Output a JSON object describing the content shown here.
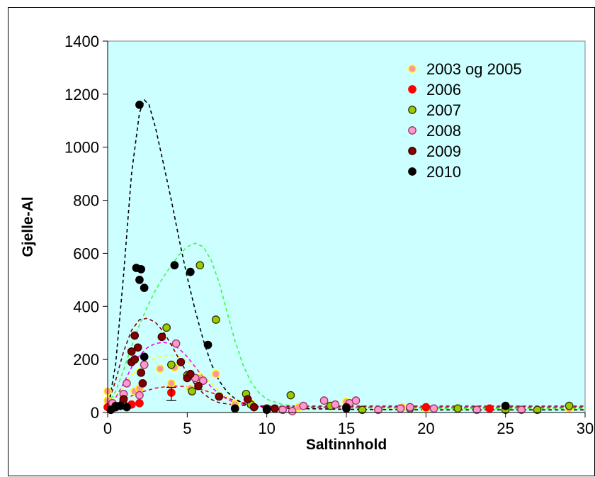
{
  "chart_data": {
    "type": "scatter",
    "title": "",
    "xlabel": "Saltinnhold",
    "ylabel": "Gjelle-Al",
    "xlim": [
      0,
      30
    ],
    "ylim": [
      0,
      1400
    ],
    "x_ticks": [
      "0",
      "5",
      "10",
      "15",
      "20",
      "25",
      "30"
    ],
    "y_ticks": [
      "0",
      "200",
      "400",
      "600",
      "800",
      "1000",
      "1200",
      "1400"
    ],
    "grid": false,
    "plot_background": "#ccffff",
    "legend_position": "top-right",
    "series": [
      {
        "name": "2003 og 2005",
        "fill": "#ff9999",
        "stroke": "#ffff00",
        "trend_color": "#ffff00",
        "trend": [
          [
            0,
            30
          ],
          [
            0.5,
            60
          ],
          [
            1,
            100
          ],
          [
            1.5,
            140
          ],
          [
            2,
            170
          ],
          [
            2.5,
            190
          ],
          [
            3,
            205
          ],
          [
            3.5,
            213
          ],
          [
            4,
            215
          ],
          [
            4.5,
            210
          ],
          [
            5,
            195
          ],
          [
            5.5,
            170
          ],
          [
            6,
            140
          ],
          [
            6.5,
            110
          ],
          [
            7,
            80
          ],
          [
            7.5,
            58
          ],
          [
            8,
            40
          ],
          [
            8.5,
            30
          ],
          [
            9,
            22
          ],
          [
            10,
            16
          ],
          [
            12,
            12
          ],
          [
            15,
            12
          ],
          [
            20,
            12
          ],
          [
            25,
            12
          ],
          [
            30,
            12
          ]
        ],
        "points": [
          [
            0,
            80
          ],
          [
            0,
            45
          ],
          [
            0.3,
            30
          ],
          [
            0.5,
            20
          ],
          [
            1,
            60
          ],
          [
            1.7,
            80
          ],
          [
            2,
            90
          ],
          [
            3.3,
            165
          ],
          [
            4,
            110
          ],
          [
            4.2,
            170
          ],
          [
            5.2,
            90
          ],
          [
            5.7,
            130
          ],
          [
            6.8,
            145
          ],
          [
            8,
            30
          ],
          [
            9,
            35
          ],
          [
            12,
            20
          ],
          [
            15,
            40
          ],
          [
            18.5,
            20
          ],
          [
            20,
            15
          ],
          [
            22,
            15
          ],
          [
            25,
            12
          ],
          [
            27,
            10
          ],
          [
            29,
            15
          ]
        ]
      },
      {
        "name": "2006",
        "fill": "#ff0000",
        "stroke": "#ff0000",
        "trend_color": "#ff0000",
        "trend": [
          [
            0,
            20
          ],
          [
            1,
            50
          ],
          [
            2,
            75
          ],
          [
            3,
            92
          ],
          [
            4,
            100
          ],
          [
            5,
            98
          ],
          [
            6,
            85
          ],
          [
            7,
            65
          ],
          [
            8,
            45
          ],
          [
            9,
            30
          ],
          [
            10,
            22
          ],
          [
            12,
            18
          ],
          [
            15,
            18
          ],
          [
            20,
            18
          ],
          [
            25,
            18
          ],
          [
            30,
            18
          ]
        ],
        "points": [
          [
            0,
            20
          ],
          [
            0.5,
            25
          ],
          [
            1,
            30
          ],
          [
            1.5,
            30
          ],
          [
            2,
            35
          ],
          [
            4,
            75
          ],
          [
            15,
            20
          ],
          [
            20,
            20
          ],
          [
            24,
            15
          ]
        ]
      },
      {
        "name": "2007",
        "fill": "#99cc00",
        "stroke": "#333300",
        "trend_color": "#33ff33",
        "trend": [
          [
            0,
            30
          ],
          [
            0.5,
            80
          ],
          [
            1,
            160
          ],
          [
            1.5,
            250
          ],
          [
            2,
            330
          ],
          [
            2.5,
            400
          ],
          [
            3,
            460
          ],
          [
            3.5,
            510
          ],
          [
            4,
            555
          ],
          [
            4.5,
            595
          ],
          [
            5,
            625
          ],
          [
            5.5,
            638
          ],
          [
            6,
            625
          ],
          [
            6.5,
            575
          ],
          [
            7,
            490
          ],
          [
            7.5,
            380
          ],
          [
            8,
            270
          ],
          [
            8.5,
            180
          ],
          [
            9,
            115
          ],
          [
            9.5,
            75
          ],
          [
            10,
            50
          ],
          [
            11,
            30
          ],
          [
            12,
            22
          ],
          [
            15,
            18
          ],
          [
            20,
            16
          ],
          [
            25,
            15
          ],
          [
            30,
            15
          ]
        ],
        "points": [
          [
            0.5,
            20
          ],
          [
            1,
            30
          ],
          [
            3.7,
            320
          ],
          [
            4,
            180
          ],
          [
            5,
            140
          ],
          [
            5.3,
            80
          ],
          [
            5.8,
            555
          ],
          [
            6.8,
            350
          ],
          [
            8.7,
            70
          ],
          [
            9,
            30
          ],
          [
            11.5,
            65
          ],
          [
            14,
            25
          ],
          [
            16,
            10
          ],
          [
            19,
            15
          ],
          [
            22,
            15
          ],
          [
            25,
            10
          ],
          [
            27,
            10
          ],
          [
            29,
            25
          ]
        ]
      },
      {
        "name": "2008",
        "fill": "#ff99cc",
        "stroke": "#993366",
        "trend_color": "#ff00ff",
        "trend": [
          [
            0,
            20
          ],
          [
            0.5,
            55
          ],
          [
            1,
            110
          ],
          [
            1.5,
            170
          ],
          [
            2,
            215
          ],
          [
            2.5,
            245
          ],
          [
            3,
            260
          ],
          [
            3.5,
            265
          ],
          [
            4,
            258
          ],
          [
            4.5,
            240
          ],
          [
            5,
            210
          ],
          [
            5.5,
            172
          ],
          [
            6,
            132
          ],
          [
            6.5,
            97
          ],
          [
            7,
            70
          ],
          [
            7.5,
            50
          ],
          [
            8,
            37
          ],
          [
            9,
            26
          ],
          [
            10,
            22
          ],
          [
            12,
            20
          ],
          [
            15,
            20
          ],
          [
            20,
            20
          ],
          [
            25,
            20
          ],
          [
            30,
            20
          ]
        ],
        "points": [
          [
            0.3,
            35
          ],
          [
            1,
            70
          ],
          [
            1.2,
            110
          ],
          [
            2,
            65
          ],
          [
            2.3,
            180
          ],
          [
            4.3,
            260
          ],
          [
            5.5,
            130
          ],
          [
            6,
            120
          ],
          [
            11,
            10
          ],
          [
            11.6,
            5
          ],
          [
            12.3,
            25
          ],
          [
            13.6,
            45
          ],
          [
            14.3,
            30
          ],
          [
            15.2,
            35
          ],
          [
            15.6,
            45
          ],
          [
            17,
            10
          ],
          [
            18.4,
            15
          ],
          [
            19,
            20
          ],
          [
            20.5,
            15
          ],
          [
            23.2,
            10
          ],
          [
            26,
            10
          ]
        ]
      },
      {
        "name": "2009",
        "fill": "#800000",
        "stroke": "#400000",
        "trend_color": "#800000",
        "trend": [
          [
            0,
            30
          ],
          [
            0.5,
            120
          ],
          [
            1,
            230
          ],
          [
            1.5,
            310
          ],
          [
            2,
            350
          ],
          [
            2.5,
            355
          ],
          [
            3,
            340
          ],
          [
            3.5,
            305
          ],
          [
            4,
            255
          ],
          [
            4.5,
            200
          ],
          [
            5,
            148
          ],
          [
            5.5,
            105
          ],
          [
            6,
            72
          ],
          [
            6.5,
            50
          ],
          [
            7,
            37
          ],
          [
            8,
            28
          ],
          [
            9,
            25
          ],
          [
            10,
            24
          ],
          [
            12,
            24
          ],
          [
            15,
            24
          ],
          [
            20,
            24
          ],
          [
            25,
            24
          ],
          [
            30,
            24
          ]
        ],
        "points": [
          [
            0.5,
            25
          ],
          [
            1,
            50
          ],
          [
            1.5,
            190
          ],
          [
            1.5,
            230
          ],
          [
            1.7,
            290
          ],
          [
            1.7,
            200
          ],
          [
            1.9,
            245
          ],
          [
            2.1,
            150
          ],
          [
            2.2,
            110
          ],
          [
            3.4,
            285
          ],
          [
            4.6,
            190
          ],
          [
            5,
            130
          ],
          [
            5.2,
            145
          ],
          [
            5.7,
            100
          ],
          [
            7,
            60
          ],
          [
            8.8,
            50
          ],
          [
            9.2,
            20
          ],
          [
            10,
            15
          ],
          [
            10.5,
            15
          ],
          [
            15,
            20
          ]
        ]
      },
      {
        "name": "2010",
        "fill": "#000000",
        "stroke": "#000000",
        "trend_color": "#000000",
        "trend": [
          [
            0,
            10
          ],
          [
            0.5,
            180
          ],
          [
            1,
            520
          ],
          [
            1.5,
            900
          ],
          [
            2,
            1130
          ],
          [
            2.3,
            1178
          ],
          [
            2.6,
            1160
          ],
          [
            3,
            1075
          ],
          [
            3.5,
            940
          ],
          [
            4,
            800
          ],
          [
            4.5,
            650
          ],
          [
            5,
            510
          ],
          [
            5.5,
            385
          ],
          [
            6,
            275
          ],
          [
            6.5,
            185
          ],
          [
            7,
            120
          ],
          [
            7.5,
            78
          ],
          [
            8,
            52
          ],
          [
            8.5,
            35
          ],
          [
            9,
            25
          ],
          [
            10,
            18
          ],
          [
            12,
            15
          ],
          [
            15,
            12
          ],
          [
            20,
            10
          ],
          [
            25,
            10
          ],
          [
            30,
            10
          ]
        ],
        "points": [
          [
            0.2,
            10
          ],
          [
            0.5,
            20
          ],
          [
            0.8,
            25
          ],
          [
            1.2,
            20
          ],
          [
            1.8,
            545
          ],
          [
            2,
            1160
          ],
          [
            2,
            500
          ],
          [
            2.1,
            540
          ],
          [
            2.3,
            470
          ],
          [
            2.3,
            210
          ],
          [
            4.2,
            555
          ],
          [
            5.2,
            530
          ],
          [
            6.3,
            255
          ],
          [
            8,
            15
          ],
          [
            10,
            10
          ],
          [
            15,
            15
          ],
          [
            25,
            25
          ]
        ]
      }
    ],
    "error_bars": [
      {
        "x": 4.0,
        "y": 75,
        "low": 45,
        "high": 95
      }
    ]
  }
}
